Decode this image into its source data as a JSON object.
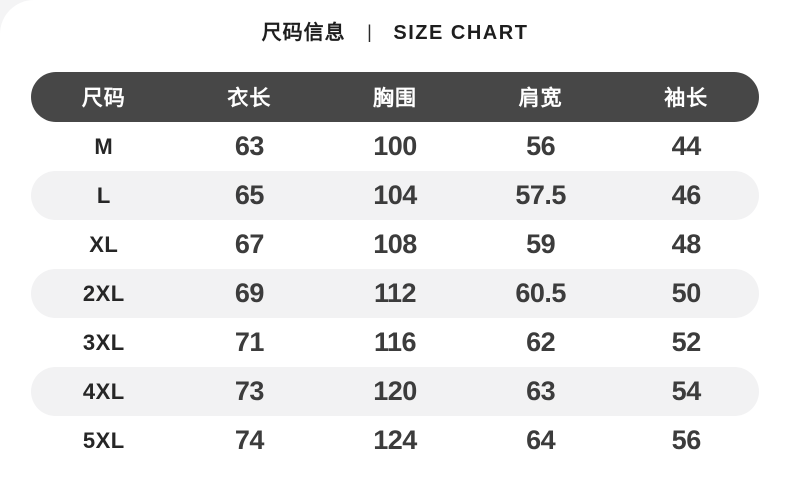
{
  "title": {
    "zh": "尺码信息",
    "divider": "|",
    "en": "SIZE CHART"
  },
  "chart_data": {
    "type": "table",
    "title": "尺码信息 | SIZE CHART",
    "headers": [
      "尺码",
      "衣长",
      "胸围",
      "肩宽",
      "袖长"
    ],
    "rows": [
      [
        "M",
        "63",
        "100",
        "56",
        "44"
      ],
      [
        "L",
        "65",
        "104",
        "57.5",
        "46"
      ],
      [
        "XL",
        "67",
        "108",
        "59",
        "48"
      ],
      [
        "2XL",
        "69",
        "112",
        "60.5",
        "50"
      ],
      [
        "3XL",
        "71",
        "116",
        "62",
        "52"
      ],
      [
        "4XL",
        "73",
        "120",
        "63",
        "54"
      ],
      [
        "5XL",
        "74",
        "124",
        "64",
        "56"
      ]
    ],
    "layout_hints": {
      "header_style": "dark rounded pill",
      "row_striping": "even rows white, odd rows light gray rounded pill"
    }
  },
  "colors": {
    "header_bg": "#474747",
    "header_text": "#ffffff",
    "alt_row_bg": "#f2f2f3",
    "size_text": "#262626",
    "number_text": "#3c3c3c",
    "title_text": "#1e1e1e",
    "card_bg": "#ffffff"
  }
}
